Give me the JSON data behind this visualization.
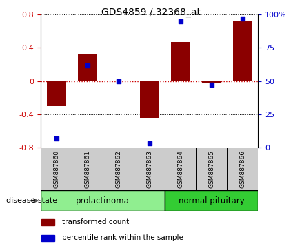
{
  "title": "GDS4859 / 32368_at",
  "samples": [
    "GSM887860",
    "GSM887861",
    "GSM887862",
    "GSM887863",
    "GSM887864",
    "GSM887865",
    "GSM887866"
  ],
  "transformed_count": [
    -0.3,
    0.32,
    0.0,
    -0.44,
    0.47,
    -0.03,
    0.73
  ],
  "percentile_rank": [
    7,
    62,
    50,
    3,
    95,
    47,
    97
  ],
  "group_prolactinoma": {
    "label": "prolactinoma",
    "indices": [
      0,
      1,
      2,
      3
    ],
    "color": "#90EE90"
  },
  "group_normal": {
    "label": "normal pituitary",
    "indices": [
      4,
      5,
      6
    ],
    "color": "#33CC33"
  },
  "bar_color": "#8B0000",
  "dot_color": "#0000CC",
  "ylim_left": [
    -0.8,
    0.8
  ],
  "ylim_right": [
    0,
    100
  ],
  "yticks_left": [
    -0.8,
    -0.4,
    0.0,
    0.4,
    0.8
  ],
  "ytick_labels_left": [
    "-0.8",
    "-0.4",
    "0",
    "0.4",
    "0.8"
  ],
  "yticks_right": [
    0,
    25,
    50,
    75,
    100
  ],
  "ytick_labels_right": [
    "0",
    "25",
    "50",
    "75",
    "100%"
  ],
  "left_tick_color": "#CC0000",
  "right_tick_color": "#0000CC",
  "hline_color": "#CC0000",
  "dotline_color": "#000000",
  "background_color": "#ffffff",
  "disease_state_label": "disease state",
  "legend_items": [
    {
      "label": "transformed count",
      "color": "#8B0000"
    },
    {
      "label": "percentile rank within the sample",
      "color": "#0000CC"
    }
  ],
  "sample_box_color": "#CCCCCC",
  "bar_width": 0.6
}
